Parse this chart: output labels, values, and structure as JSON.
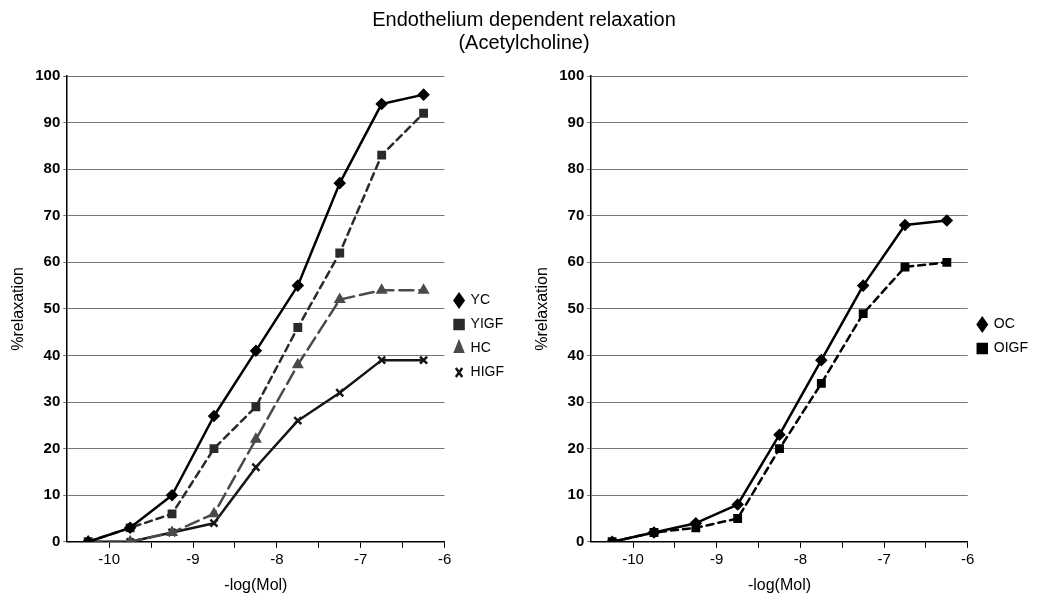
{
  "chart_data": [
    {
      "type": "line",
      "title": "Endothelium dependent relaxation\n(Acetylcholine)",
      "xlabel": "-log(Mol)",
      "ylabel": "%relaxation",
      "x": [
        -10.25,
        -9.75,
        -9.25,
        -8.75,
        -8.25,
        -7.75,
        -7.25,
        -6.75,
        -6.25
      ],
      "xlim": [
        -10.5,
        -6
      ],
      "xticks": [
        -10,
        {
          "value": -9.5,
          "label": null
        },
        -9,
        {
          "value": -8.5,
          "label": null
        },
        -8,
        {
          "value": -7.5,
          "label": null
        },
        -7,
        {
          "value": -6.5,
          "label": null
        },
        -6
      ],
      "ylim": [
        0,
        100
      ],
      "yticks": [
        0,
        10,
        20,
        30,
        40,
        50,
        60,
        70,
        80,
        90,
        100
      ],
      "grid": "y",
      "legend": "right",
      "series": [
        {
          "name": "YC",
          "color": "#000000",
          "marker": "diamond",
          "line_style": "solid",
          "values": [
            0,
            3,
            10,
            27,
            41,
            55,
            77,
            94,
            96
          ]
        },
        {
          "name": "YIGF",
          "color": "#2a2a2a",
          "marker": "square",
          "line_style": "dashed",
          "values": [
            0,
            3,
            6,
            20,
            29,
            46,
            62,
            83,
            92
          ]
        },
        {
          "name": "HC",
          "color": "#4a4a4a",
          "marker": "triangle",
          "line_style": "dashed",
          "values": [
            0,
            0,
            2,
            6,
            22,
            38,
            52,
            54,
            54
          ]
        },
        {
          "name": "HIGF",
          "color": "#151515",
          "marker": "cross",
          "line_style": "solid",
          "values": [
            0,
            0,
            2,
            4,
            16,
            26,
            32,
            39,
            39
          ]
        }
      ]
    },
    {
      "type": "line",
      "xlabel": "-log(Mol)",
      "ylabel": "%relaxation",
      "x": [
        -10.25,
        -9.75,
        -9.25,
        -8.75,
        -8.25,
        -7.75,
        -7.25,
        -6.75,
        -6.25
      ],
      "xlim": [
        -10.5,
        -6
      ],
      "xticks": [
        -10,
        {
          "value": -9.5,
          "label": null
        },
        -9,
        {
          "value": -8.5,
          "label": null
        },
        -8,
        {
          "value": -7.5,
          "label": null
        },
        -7,
        {
          "value": -6.5,
          "label": null
        },
        -6
      ],
      "ylim": [
        0,
        100
      ],
      "yticks": [
        0,
        10,
        20,
        30,
        40,
        50,
        60,
        70,
        80,
        90,
        100
      ],
      "grid": "y",
      "legend": "right",
      "series": [
        {
          "name": "OC",
          "color": "#000000",
          "marker": "diamond",
          "line_style": "solid",
          "values": [
            0,
            2,
            4,
            8,
            23,
            39,
            55,
            68,
            69
          ]
        },
        {
          "name": "OIGF",
          "color": "#000000",
          "marker": "square",
          "line_style": "dashed",
          "values": [
            0,
            2,
            3,
            5,
            20,
            34,
            49,
            59,
            60
          ]
        }
      ]
    }
  ]
}
